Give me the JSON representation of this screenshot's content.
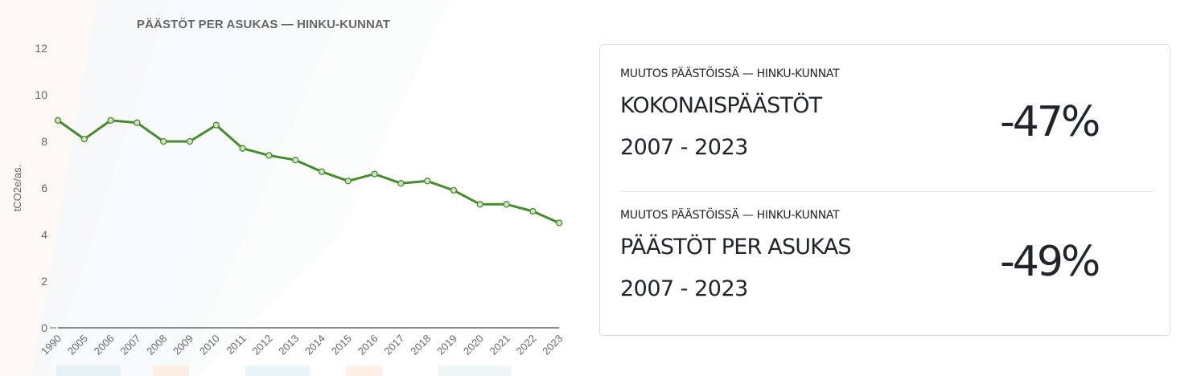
{
  "chart_data": {
    "type": "line",
    "title": "PÄÄSTÖT PER ASUKAS — HINKU-KUNNAT",
    "xlabel": "",
    "ylabel": "tCO2e/as.",
    "ylim": [
      0,
      12
    ],
    "yticks": [
      0,
      2,
      4,
      6,
      8,
      10,
      12
    ],
    "grid": false,
    "legend": null,
    "categories": [
      "1990",
      "2005",
      "2006",
      "2007",
      "2008",
      "2009",
      "2010",
      "2011",
      "2012",
      "2013",
      "2014",
      "2015",
      "2016",
      "2017",
      "2018",
      "2019",
      "2020",
      "2021",
      "2022",
      "2023"
    ],
    "series": [
      {
        "name": "Päästöt per asukas",
        "color": "#4a8a2f",
        "values": [
          8.9,
          8.1,
          8.9,
          8.8,
          8.0,
          8.0,
          8.7,
          7.7,
          7.4,
          7.2,
          6.7,
          6.3,
          6.6,
          6.2,
          6.3,
          5.9,
          5.3,
          5.3,
          5.0,
          4.5
        ]
      }
    ]
  },
  "card": {
    "stats": [
      {
        "subtitle": "MUUTOS PÄÄSTÖISSÄ — HINKU-KUNNAT",
        "title": "KOKONAISPÄÄSTÖT",
        "period": "2007 - 2023",
        "value": "-47%"
      },
      {
        "subtitle": "MUUTOS PÄÄSTÖISSÄ — HINKU-KUNNAT",
        "title": "PÄÄSTÖT PER ASUKAS",
        "period": "2007 - 2023",
        "value": "-49%"
      }
    ]
  }
}
